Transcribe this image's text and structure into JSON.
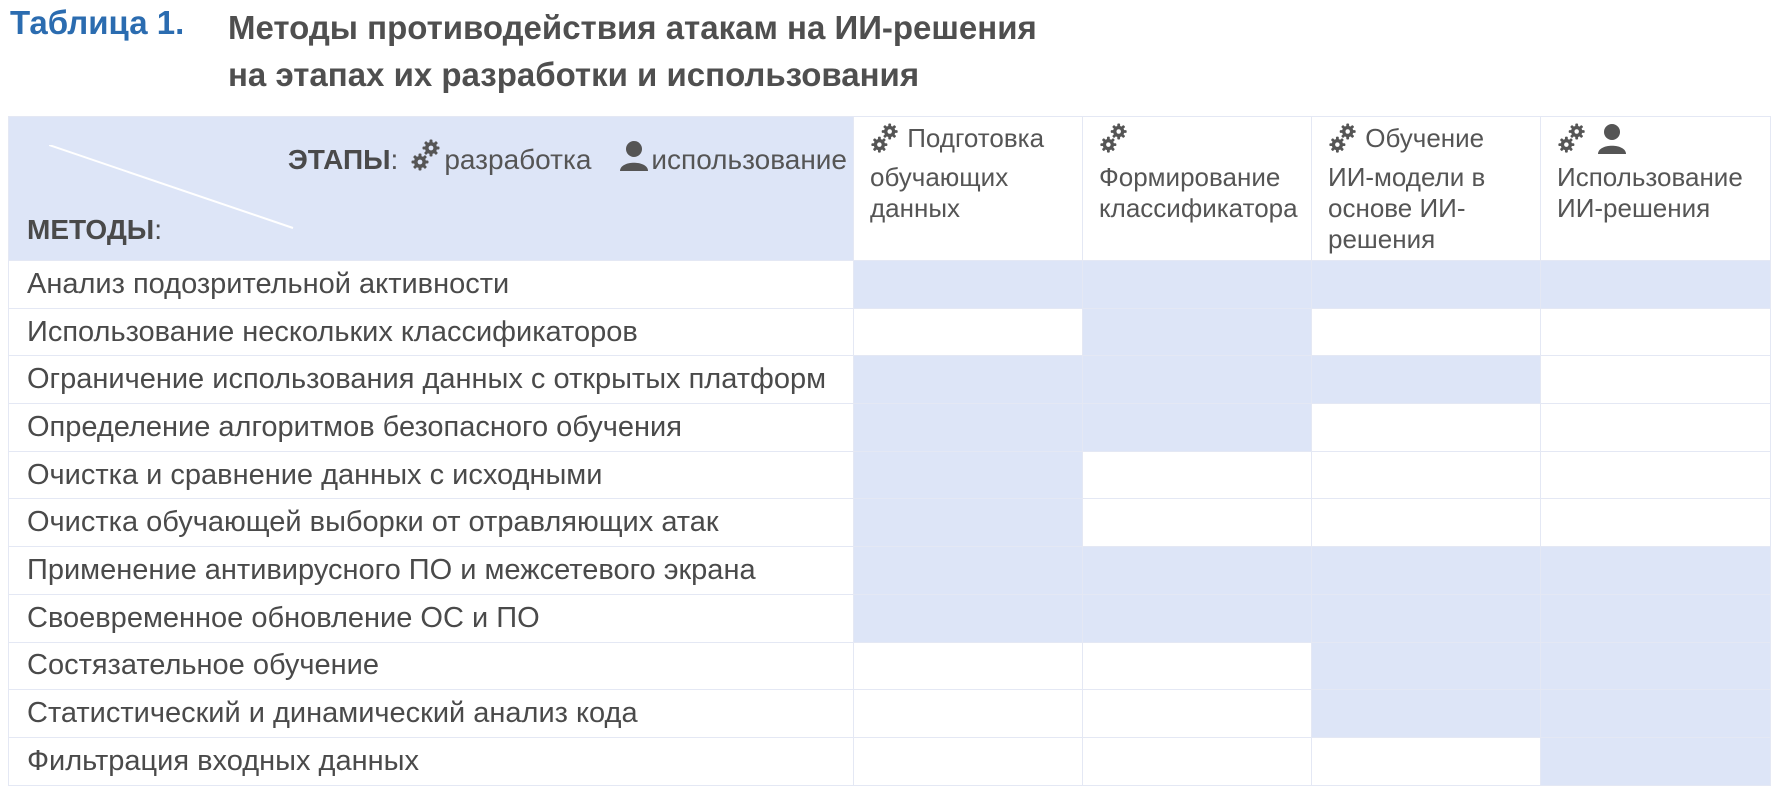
{
  "caption": {
    "label": "Таблица 1.",
    "title_line1": "Методы противодействия атакам на ИИ-решения",
    "title_line2": "на этапах их разработки и использования"
  },
  "legend": {
    "stages_word": "ЭТАПЫ",
    "colon": ":",
    "dev_icon": "gears-icon",
    "dev_label": "разработка",
    "use_icon": "user-icon",
    "use_label": "использование",
    "methods_word": "МЕТОДЫ"
  },
  "stages": [
    {
      "icons": [
        "gears-icon"
      ],
      "label": "Подготовка обучающих данных"
    },
    {
      "icons": [
        "gears-icon"
      ],
      "label": "Формирование классификатора"
    },
    {
      "icons": [
        "gears-icon"
      ],
      "label": "Обучение ИИ-модели в основе ИИ-решения"
    },
    {
      "icons": [
        "gears-icon",
        "user-icon"
      ],
      "label": "Использование ИИ-решения"
    }
  ],
  "methods": [
    {
      "name": "Анализ подозрительной активности",
      "applies": [
        true,
        true,
        true,
        true
      ]
    },
    {
      "name": "Использование нескольких классификаторов",
      "applies": [
        false,
        true,
        false,
        false
      ]
    },
    {
      "name": "Ограничение использования данных с открытых платформ",
      "applies": [
        true,
        true,
        true,
        false
      ]
    },
    {
      "name": "Определение алгоритмов безопасного обучения",
      "applies": [
        true,
        true,
        false,
        false
      ]
    },
    {
      "name": "Очистка и сравнение данных с исходными",
      "applies": [
        true,
        false,
        false,
        false
      ]
    },
    {
      "name": "Очистка обучающей выборки от отравляющих атак",
      "applies": [
        true,
        false,
        false,
        false
      ]
    },
    {
      "name": "Применение антивирусного ПО и межсетевого экрана",
      "applies": [
        true,
        true,
        true,
        true
      ]
    },
    {
      "name": "Своевременное обновление ОС и ПО",
      "applies": [
        true,
        true,
        true,
        true
      ]
    },
    {
      "name": "Состязательное обучение",
      "applies": [
        false,
        false,
        true,
        true
      ]
    },
    {
      "name": "Статистический и динамический анализ кода",
      "applies": [
        false,
        false,
        true,
        true
      ]
    },
    {
      "name": "Фильтрация входных данных",
      "applies": [
        false,
        false,
        false,
        true
      ]
    }
  ],
  "colors": {
    "accent": "#2b6cb0",
    "highlight": "#dde5f7",
    "text": "#4a4a4a"
  }
}
